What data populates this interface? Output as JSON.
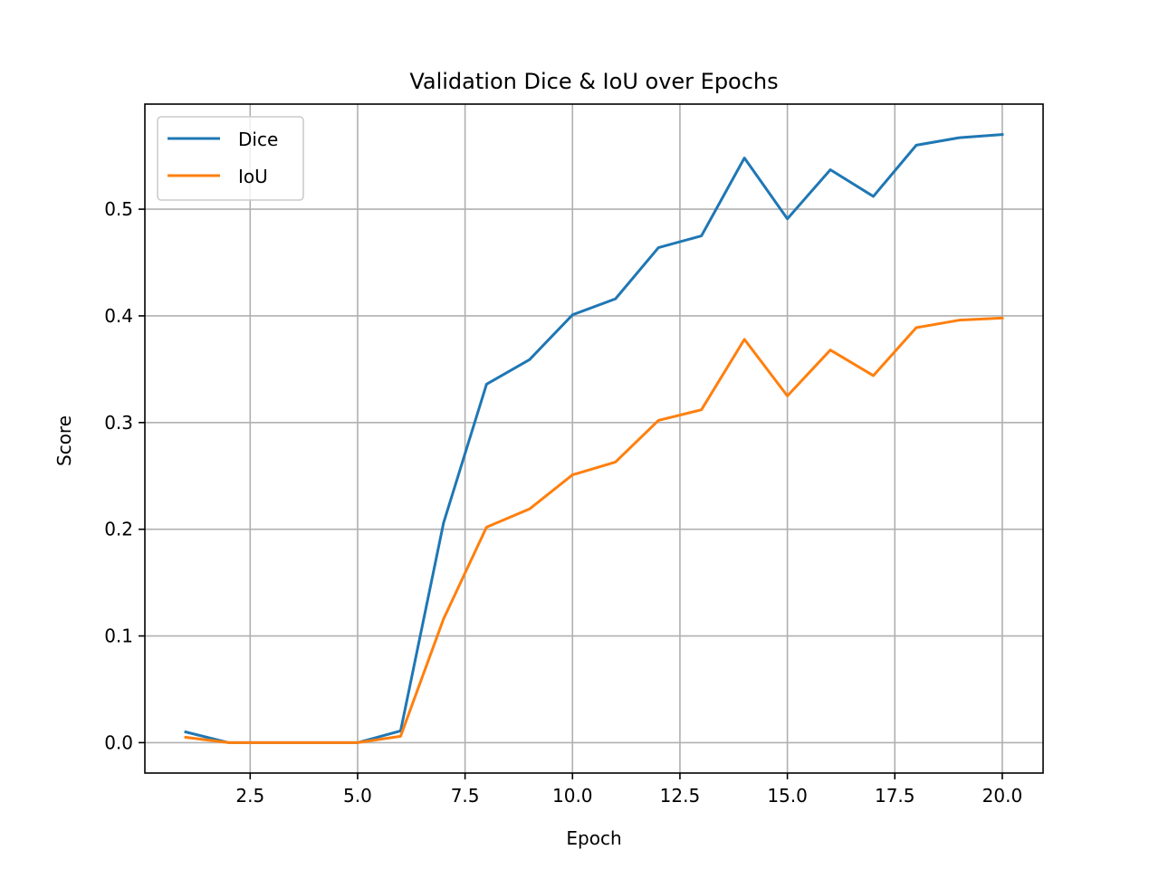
{
  "chart_data": {
    "type": "line",
    "title": "Validation Dice & IoU over Epochs",
    "xlabel": "Epoch",
    "ylabel": "Score",
    "xlim": [
      0.05,
      20.95
    ],
    "ylim": [
      -0.0285,
      0.5985
    ],
    "xticks": [
      "2.5",
      "5.0",
      "7.5",
      "10.0",
      "12.5",
      "15.0",
      "17.5",
      "20.0"
    ],
    "xtick_values": [
      2.5,
      5.0,
      7.5,
      10.0,
      12.5,
      15.0,
      17.5,
      20.0
    ],
    "yticks": [
      "0.0",
      "0.1",
      "0.2",
      "0.3",
      "0.4",
      "0.5"
    ],
    "ytick_values": [
      0.0,
      0.1,
      0.2,
      0.3,
      0.4,
      0.5
    ],
    "grid": true,
    "legend_position": "top-left",
    "x": [
      1,
      2,
      3,
      4,
      5,
      6,
      7,
      8,
      9,
      10,
      11,
      12,
      13,
      14,
      15,
      16,
      17,
      18,
      19,
      20
    ],
    "series": [
      {
        "name": "Dice",
        "color": "#1f77b4",
        "values": [
          0.01,
          0.0,
          0.0,
          0.0,
          0.0,
          0.011,
          0.206,
          0.336,
          0.359,
          0.401,
          0.416,
          0.464,
          0.475,
          0.548,
          0.491,
          0.537,
          0.512,
          0.56,
          0.567,
          0.57
        ]
      },
      {
        "name": "IoU",
        "color": "#ff7f0e",
        "values": [
          0.005,
          0.0,
          0.0,
          0.0,
          0.0,
          0.006,
          0.116,
          0.202,
          0.219,
          0.251,
          0.263,
          0.302,
          0.312,
          0.378,
          0.325,
          0.368,
          0.344,
          0.389,
          0.396,
          0.398
        ]
      }
    ]
  }
}
